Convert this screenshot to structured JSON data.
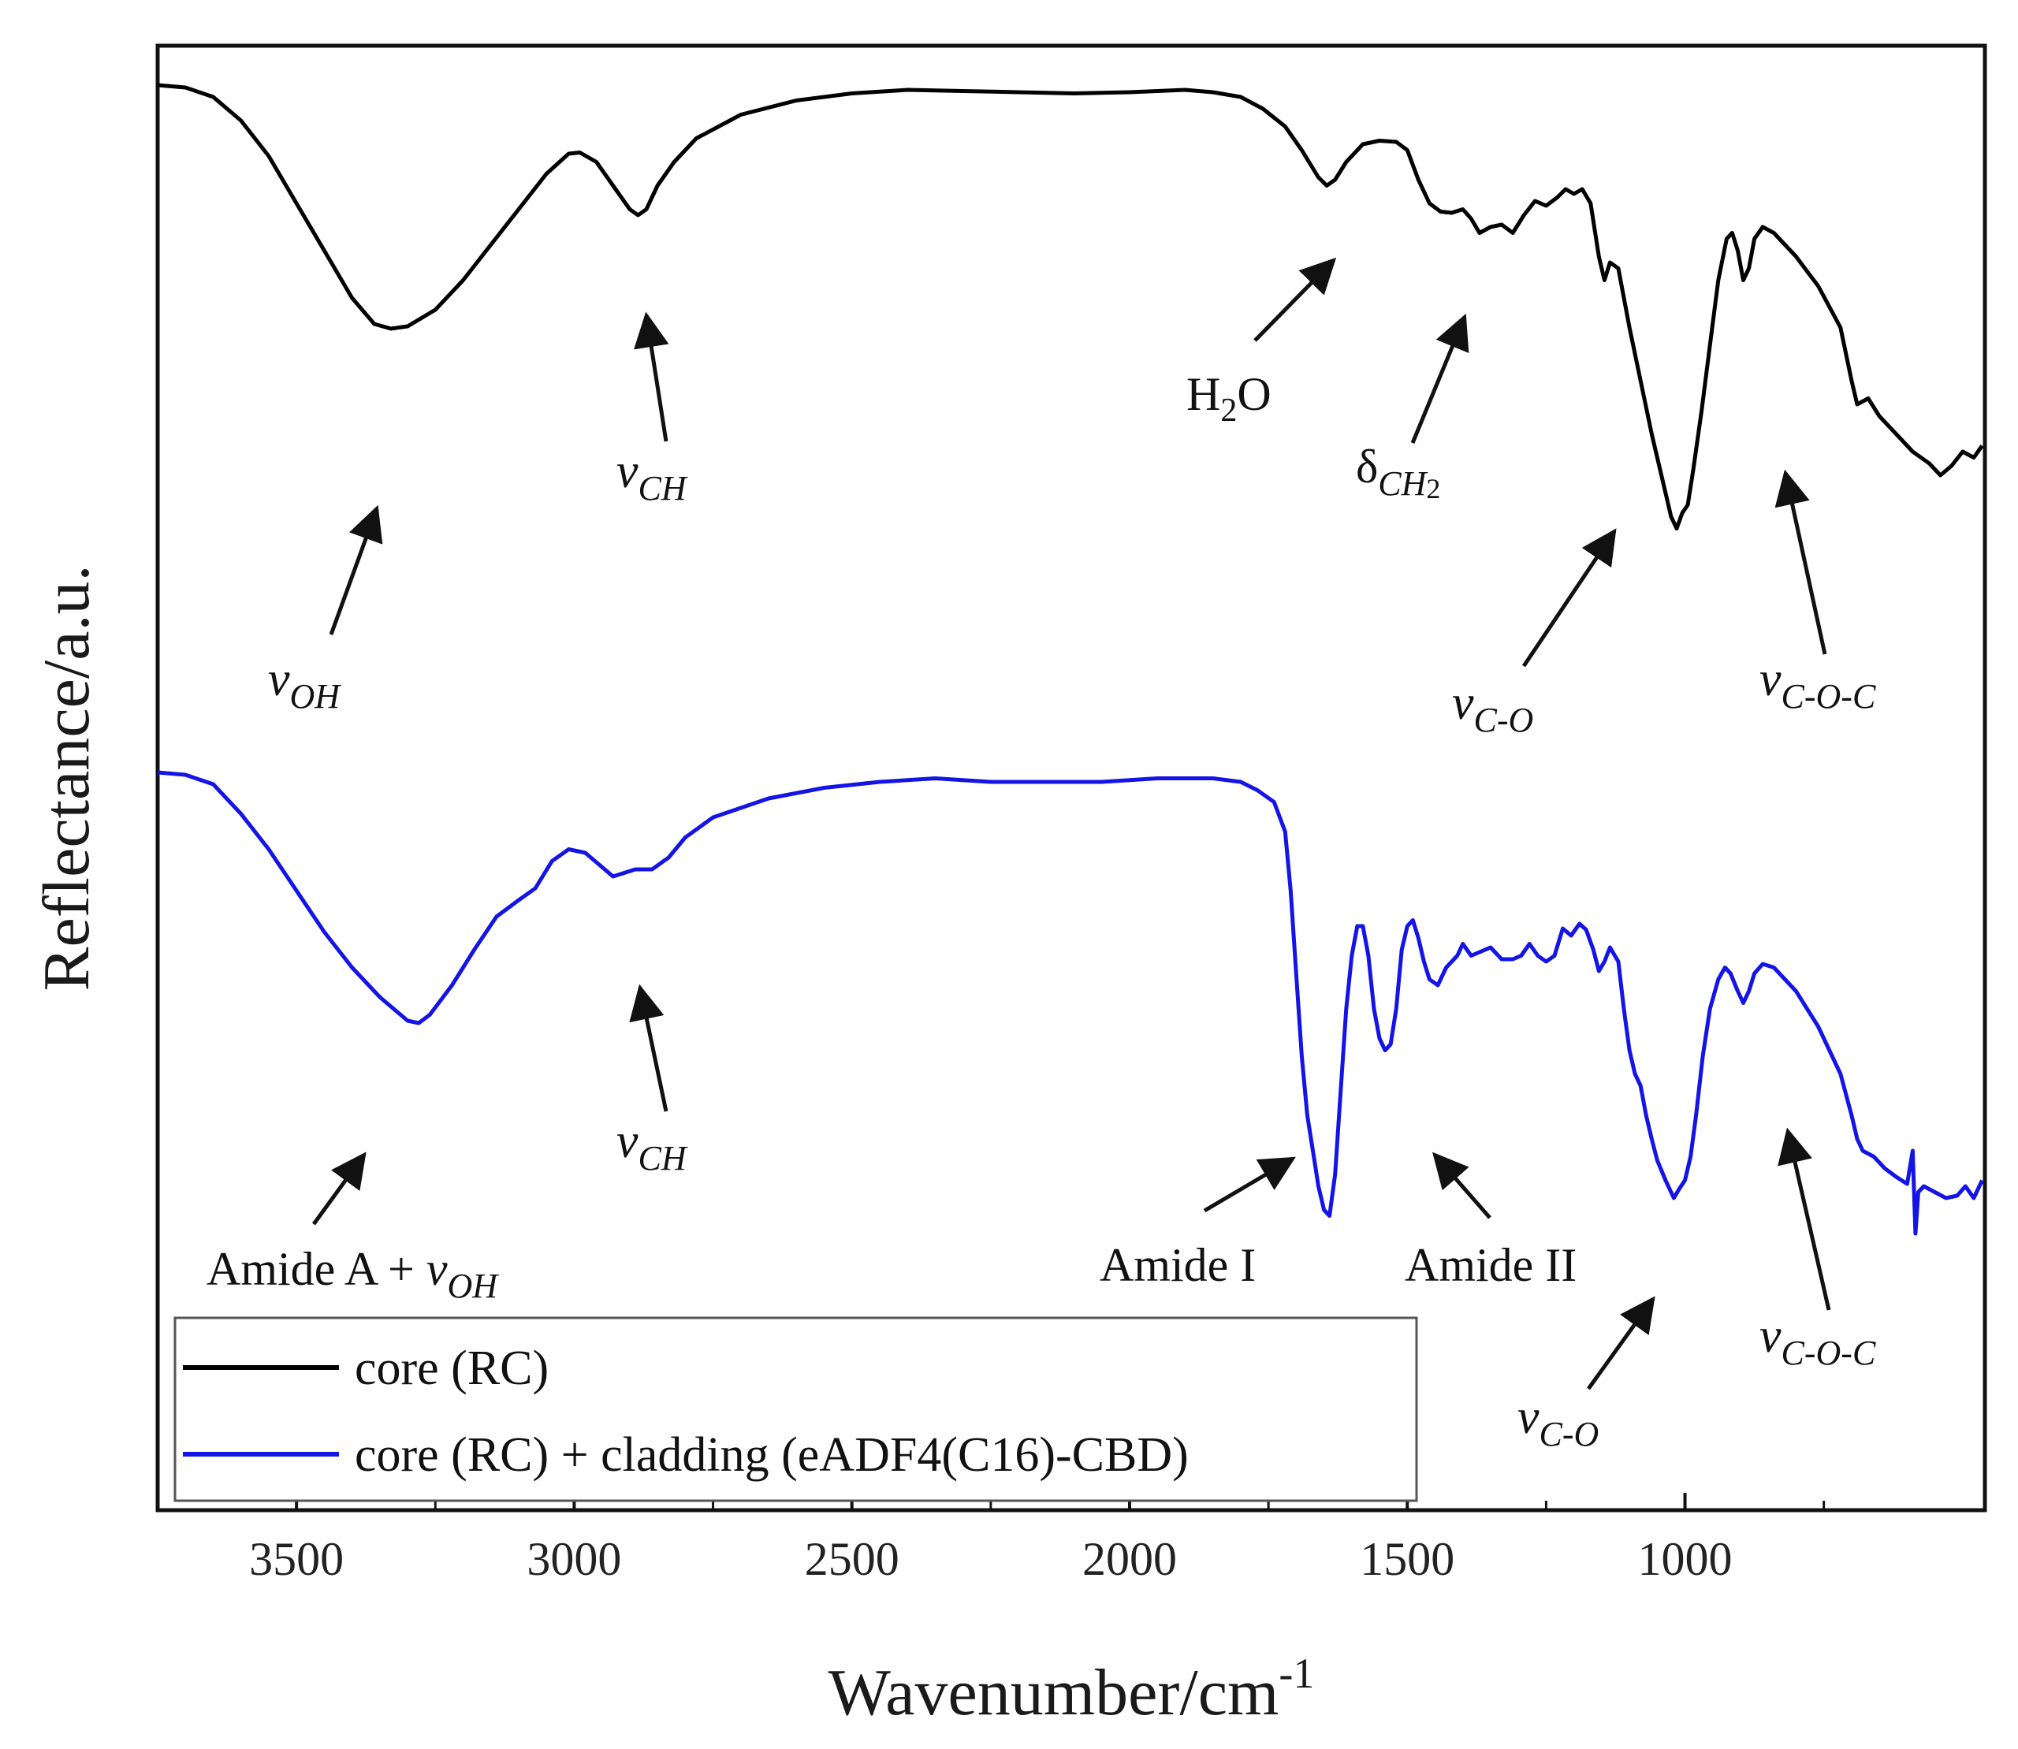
{
  "chart_data": {
    "type": "line",
    "title": "",
    "xlabel": "Wavenumber/cm",
    "xlabel_sup": "-1",
    "ylabel": "Reflectance/a.u.",
    "xlim": [
      3750,
      460
    ],
    "x_reversed": true,
    "y_ticks_labeled": false,
    "grid": false,
    "legend_position": "bottom-left",
    "x_ticks": [
      "3500",
      "3000",
      "2500",
      "2000",
      "1500",
      "1000"
    ],
    "series": [
      {
        "name": "core (RC)",
        "color": "#000000",
        "points": [
          [
            3750,
            0.6
          ],
          [
            3700,
            0.58
          ],
          [
            3650,
            0.5
          ],
          [
            3600,
            0.3
          ],
          [
            3550,
            0.0
          ],
          [
            3500,
            -0.4
          ],
          [
            3450,
            -0.8
          ],
          [
            3400,
            -1.2
          ],
          [
            3360,
            -1.42
          ],
          [
            3330,
            -1.46
          ],
          [
            3300,
            -1.44
          ],
          [
            3250,
            -1.3
          ],
          [
            3200,
            -1.05
          ],
          [
            3150,
            -0.75
          ],
          [
            3100,
            -0.45
          ],
          [
            3050,
            -0.15
          ],
          [
            3010,
            0.02
          ],
          [
            2990,
            0.03
          ],
          [
            2960,
            -0.05
          ],
          [
            2930,
            -0.25
          ],
          [
            2900,
            -0.45
          ],
          [
            2885,
            -0.5
          ],
          [
            2870,
            -0.45
          ],
          [
            2850,
            -0.25
          ],
          [
            2820,
            -0.05
          ],
          [
            2780,
            0.15
          ],
          [
            2700,
            0.35
          ],
          [
            2600,
            0.47
          ],
          [
            2500,
            0.53
          ],
          [
            2400,
            0.56
          ],
          [
            2300,
            0.55
          ],
          [
            2200,
            0.54
          ],
          [
            2100,
            0.53
          ],
          [
            2000,
            0.54
          ],
          [
            1900,
            0.56
          ],
          [
            1850,
            0.54
          ],
          [
            1800,
            0.5
          ],
          [
            1760,
            0.4
          ],
          [
            1720,
            0.25
          ],
          [
            1690,
            0.05
          ],
          [
            1660,
            -0.18
          ],
          [
            1645,
            -0.25
          ],
          [
            1630,
            -0.2
          ],
          [
            1610,
            -0.05
          ],
          [
            1580,
            0.1
          ],
          [
            1550,
            0.13
          ],
          [
            1520,
            0.12
          ],
          [
            1500,
            0.05
          ],
          [
            1480,
            -0.2
          ],
          [
            1460,
            -0.4
          ],
          [
            1440,
            -0.47
          ],
          [
            1420,
            -0.48
          ],
          [
            1400,
            -0.45
          ],
          [
            1385,
            -0.53
          ],
          [
            1370,
            -0.65
          ],
          [
            1350,
            -0.6
          ],
          [
            1330,
            -0.58
          ],
          [
            1310,
            -0.65
          ],
          [
            1290,
            -0.5
          ],
          [
            1270,
            -0.38
          ],
          [
            1250,
            -0.42
          ],
          [
            1230,
            -0.35
          ],
          [
            1215,
            -0.28
          ],
          [
            1200,
            -0.32
          ],
          [
            1185,
            -0.28
          ],
          [
            1170,
            -0.4
          ],
          [
            1155,
            -0.85
          ],
          [
            1145,
            -1.05
          ],
          [
            1135,
            -0.9
          ],
          [
            1120,
            -0.95
          ],
          [
            1100,
            -1.45
          ],
          [
            1080,
            -1.9
          ],
          [
            1060,
            -2.35
          ],
          [
            1040,
            -2.75
          ],
          [
            1025,
            -3.05
          ],
          [
            1015,
            -3.15
          ],
          [
            1005,
            -3.02
          ],
          [
            995,
            -2.95
          ],
          [
            985,
            -2.65
          ],
          [
            970,
            -2.15
          ],
          [
            955,
            -1.6
          ],
          [
            940,
            -1.05
          ],
          [
            925,
            -0.7
          ],
          [
            915,
            -0.65
          ],
          [
            905,
            -0.8
          ],
          [
            895,
            -1.05
          ],
          [
            885,
            -0.95
          ],
          [
            875,
            -0.7
          ],
          [
            860,
            -0.6
          ],
          [
            840,
            -0.65
          ],
          [
            800,
            -0.85
          ],
          [
            760,
            -1.1
          ],
          [
            720,
            -1.45
          ],
          [
            700,
            -1.9
          ],
          [
            690,
            -2.1
          ],
          [
            670,
            -2.05
          ],
          [
            650,
            -2.2
          ],
          [
            620,
            -2.35
          ],
          [
            590,
            -2.5
          ],
          [
            560,
            -2.6
          ],
          [
            540,
            -2.7
          ],
          [
            520,
            -2.62
          ],
          [
            500,
            -2.5
          ],
          [
            480,
            -2.55
          ],
          [
            465,
            -2.45
          ]
        ]
      },
      {
        "name": "core (RC) + cladding (eADF4(C16)-CBD)",
        "color": "#1414e6",
        "points": [
          [
            3750,
            0.6
          ],
          [
            3700,
            0.58
          ],
          [
            3650,
            0.5
          ],
          [
            3600,
            0.25
          ],
          [
            3550,
            -0.05
          ],
          [
            3500,
            -0.4
          ],
          [
            3450,
            -0.75
          ],
          [
            3400,
            -1.05
          ],
          [
            3350,
            -1.3
          ],
          [
            3300,
            -1.5
          ],
          [
            3280,
            -1.52
          ],
          [
            3260,
            -1.45
          ],
          [
            3220,
            -1.2
          ],
          [
            3180,
            -0.9
          ],
          [
            3140,
            -0.62
          ],
          [
            3100,
            -0.48
          ],
          [
            3070,
            -0.38
          ],
          [
            3040,
            -0.15
          ],
          [
            3010,
            -0.05
          ],
          [
            2980,
            -0.08
          ],
          [
            2950,
            -0.2
          ],
          [
            2930,
            -0.28
          ],
          [
            2910,
            -0.25
          ],
          [
            2890,
            -0.22
          ],
          [
            2860,
            -0.22
          ],
          [
            2830,
            -0.12
          ],
          [
            2800,
            0.05
          ],
          [
            2750,
            0.22
          ],
          [
            2650,
            0.38
          ],
          [
            2550,
            0.47
          ],
          [
            2450,
            0.52
          ],
          [
            2350,
            0.55
          ],
          [
            2250,
            0.52
          ],
          [
            2150,
            0.52
          ],
          [
            2050,
            0.52
          ],
          [
            1950,
            0.55
          ],
          [
            1850,
            0.55
          ],
          [
            1800,
            0.52
          ],
          [
            1770,
            0.45
          ],
          [
            1740,
            0.35
          ],
          [
            1720,
            0.1
          ],
          [
            1710,
            -0.4
          ],
          [
            1700,
            -1.1
          ],
          [
            1690,
            -1.8
          ],
          [
            1680,
            -2.3
          ],
          [
            1670,
            -2.6
          ],
          [
            1660,
            -2.9
          ],
          [
            1650,
            -3.1
          ],
          [
            1640,
            -3.15
          ],
          [
            1630,
            -2.8
          ],
          [
            1620,
            -2.1
          ],
          [
            1610,
            -1.4
          ],
          [
            1600,
            -0.95
          ],
          [
            1590,
            -0.7
          ],
          [
            1580,
            -0.7
          ],
          [
            1570,
            -0.95
          ],
          [
            1560,
            -1.4
          ],
          [
            1550,
            -1.65
          ],
          [
            1540,
            -1.75
          ],
          [
            1530,
            -1.7
          ],
          [
            1520,
            -1.4
          ],
          [
            1510,
            -0.9
          ],
          [
            1500,
            -0.7
          ],
          [
            1490,
            -0.65
          ],
          [
            1480,
            -0.8
          ],
          [
            1470,
            -1.0
          ],
          [
            1460,
            -1.15
          ],
          [
            1445,
            -1.2
          ],
          [
            1430,
            -1.05
          ],
          [
            1410,
            -0.95
          ],
          [
            1400,
            -0.85
          ],
          [
            1385,
            -0.95
          ],
          [
            1370,
            -0.92
          ],
          [
            1350,
            -0.88
          ],
          [
            1330,
            -0.98
          ],
          [
            1310,
            -0.98
          ],
          [
            1295,
            -0.95
          ],
          [
            1280,
            -0.85
          ],
          [
            1265,
            -0.95
          ],
          [
            1250,
            -1.0
          ],
          [
            1235,
            -0.95
          ],
          [
            1220,
            -0.72
          ],
          [
            1205,
            -0.78
          ],
          [
            1190,
            -0.68
          ],
          [
            1178,
            -0.73
          ],
          [
            1165,
            -0.9
          ],
          [
            1155,
            -1.08
          ],
          [
            1145,
            -1.0
          ],
          [
            1135,
            -0.88
          ],
          [
            1120,
            -1.0
          ],
          [
            1110,
            -1.4
          ],
          [
            1100,
            -1.75
          ],
          [
            1090,
            -1.95
          ],
          [
            1080,
            -2.05
          ],
          [
            1070,
            -2.3
          ],
          [
            1060,
            -2.5
          ],
          [
            1050,
            -2.68
          ],
          [
            1035,
            -2.85
          ],
          [
            1020,
            -3.0
          ],
          [
            1010,
            -2.92
          ],
          [
            1000,
            -2.85
          ],
          [
            990,
            -2.65
          ],
          [
            980,
            -2.3
          ],
          [
            968,
            -1.8
          ],
          [
            955,
            -1.4
          ],
          [
            940,
            -1.15
          ],
          [
            928,
            -1.05
          ],
          [
            918,
            -1.1
          ],
          [
            905,
            -1.25
          ],
          [
            895,
            -1.35
          ],
          [
            885,
            -1.25
          ],
          [
            875,
            -1.1
          ],
          [
            860,
            -1.02
          ],
          [
            840,
            -1.05
          ],
          [
            800,
            -1.25
          ],
          [
            760,
            -1.55
          ],
          [
            720,
            -1.95
          ],
          [
            700,
            -2.3
          ],
          [
            690,
            -2.5
          ],
          [
            680,
            -2.6
          ],
          [
            660,
            -2.65
          ],
          [
            640,
            -2.75
          ],
          [
            620,
            -2.82
          ],
          [
            600,
            -2.88
          ],
          [
            590,
            -2.6
          ],
          [
            585,
            -3.3
          ],
          [
            580,
            -2.95
          ],
          [
            570,
            -2.9
          ],
          [
            550,
            -2.95
          ],
          [
            530,
            -3.0
          ],
          [
            510,
            -2.98
          ],
          [
            495,
            -2.9
          ],
          [
            480,
            -3.0
          ],
          [
            465,
            -2.85
          ]
        ]
      }
    ],
    "annotations": [
      {
        "id": "ann-voh",
        "main": "v",
        "sub": "OH",
        "italic": true
      },
      {
        "id": "ann-vch-top",
        "main": "v",
        "sub": "CH",
        "italic": true
      },
      {
        "id": "ann-h2o",
        "main": "H",
        "sub": "2",
        "tail": "O",
        "italic": false
      },
      {
        "id": "ann-dch2",
        "main": "δ",
        "sub": "CH",
        "sub_tail": "2",
        "italic": false
      },
      {
        "id": "ann-vco-top",
        "main": "v",
        "sub": "C-O",
        "italic": true
      },
      {
        "id": "ann-vcoc-top",
        "main": "v",
        "sub": "C-O-C",
        "italic": true
      },
      {
        "id": "ann-amide-a",
        "prefix": "Amide A + ",
        "main": "v",
        "sub": "OH",
        "italic": true
      },
      {
        "id": "ann-vch-bottom",
        "main": "v",
        "sub": "CH",
        "italic": true
      },
      {
        "id": "ann-amide-i",
        "prefix": "Amide I"
      },
      {
        "id": "ann-amide-ii",
        "prefix": "Amide II"
      },
      {
        "id": "ann-vco-bottom",
        "main": "v",
        "sub": "C-O",
        "italic": true
      },
      {
        "id": "ann-vcoc-bottom",
        "main": "v",
        "sub": "C-O-C",
        "italic": true
      }
    ]
  }
}
